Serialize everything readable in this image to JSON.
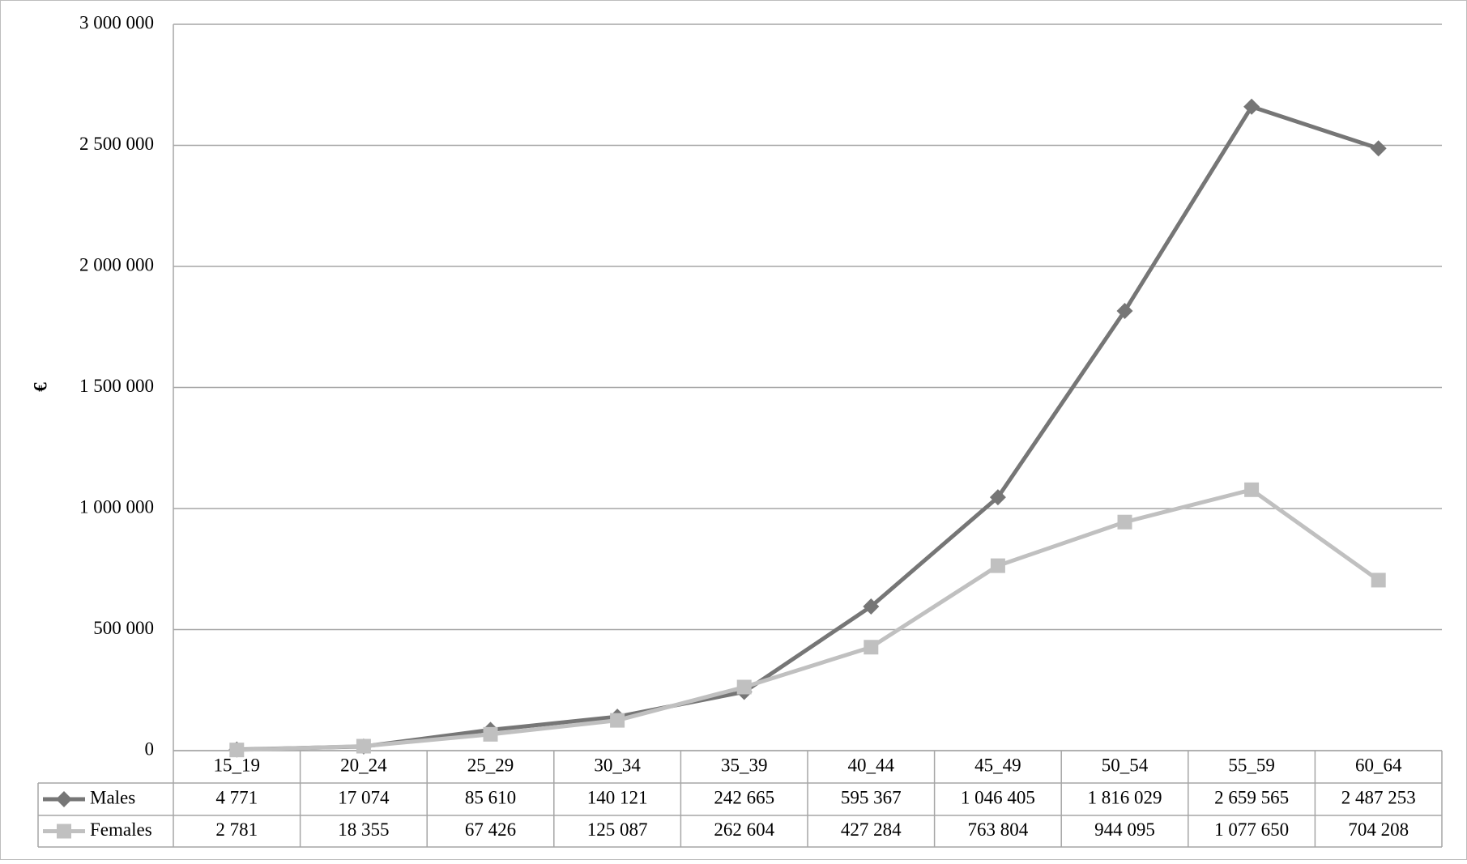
{
  "chart_data": {
    "type": "line",
    "y_label": "€",
    "categories": [
      "15_19",
      "20_24",
      "25_29",
      "30_34",
      "35_39",
      "40_44",
      "45_49",
      "50_54",
      "55_59",
      "60_64"
    ],
    "series": [
      {
        "name": "Males",
        "color": "#767676",
        "marker": "diamond",
        "values": [
          4771,
          17074,
          85610,
          140121,
          242665,
          595367,
          1046405,
          1816029,
          2659565,
          2487253
        ],
        "value_labels": [
          "4 771",
          "17 074",
          "85 610",
          "140 121",
          "242 665",
          "595 367",
          "1 046 405",
          "1 816 029",
          "2 659 565",
          "2 487 253"
        ]
      },
      {
        "name": "Females",
        "color": "#c0c0c0",
        "marker": "square",
        "values": [
          2781,
          18355,
          67426,
          125087,
          262604,
          427284,
          763804,
          944095,
          1077650,
          704208
        ],
        "value_labels": [
          "2 781",
          "18 355",
          "67 426",
          "125 087",
          "262 604",
          "427 284",
          "763 804",
          "944 095",
          "1 077 650",
          "704 208"
        ]
      }
    ],
    "ylim": [
      0,
      3000000
    ],
    "yticks": [
      0,
      {
        "value": 500000,
        "label": "500 000"
      },
      {
        "value": 1000000,
        "label": "1 000 000"
      },
      {
        "value": 1500000,
        "label": "1 500 000"
      },
      {
        "value": 2000000,
        "label": "2 000 000"
      },
      {
        "value": 2500000,
        "label": "2 500 000"
      },
      {
        "value": 3000000,
        "label": "3 000 000"
      }
    ],
    "grid": true
  }
}
